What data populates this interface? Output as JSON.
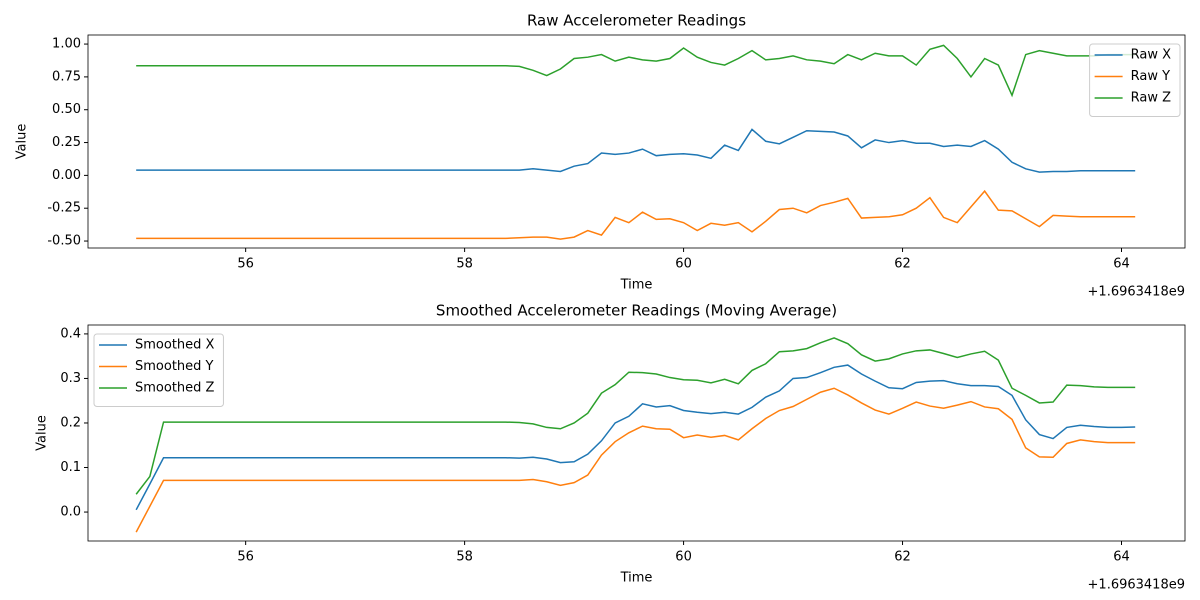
{
  "chart_data": [
    {
      "type": "line",
      "title": "Raw Accelerometer Readings",
      "xlabel": "Time",
      "ylabel": "Value",
      "x_offset_label": "+1.6963418e9",
      "x": [
        55,
        55.125,
        55.25,
        55.375,
        55.5,
        55.625,
        55.75,
        55.875,
        56,
        56.125,
        56.25,
        56.375,
        56.5,
        56.625,
        56.75,
        56.875,
        57,
        57.125,
        57.25,
        57.375,
        57.5,
        57.625,
        57.75,
        57.875,
        58,
        58.125,
        58.25,
        58.375,
        58.5,
        58.625,
        58.75,
        58.875,
        59,
        59.125,
        59.25,
        59.375,
        59.5,
        59.625,
        59.75,
        59.875,
        60,
        60.125,
        60.25,
        60.375,
        60.5,
        60.625,
        60.75,
        60.875,
        61,
        61.125,
        61.25,
        61.375,
        61.5,
        61.625,
        61.75,
        61.875,
        62,
        62.125,
        62.25,
        62.375,
        62.5,
        62.625,
        62.75,
        62.875,
        63,
        63.125,
        63.25,
        63.375,
        63.5,
        63.625,
        63.75,
        63.875,
        64,
        64.125
      ],
      "series": [
        {
          "name": "Raw X",
          "color": "#1f77b4",
          "values": [
            0.04,
            0.04,
            0.04,
            0.04,
            0.04,
            0.04,
            0.04,
            0.04,
            0.04,
            0.04,
            0.04,
            0.04,
            0.04,
            0.04,
            0.04,
            0.04,
            0.04,
            0.04,
            0.04,
            0.04,
            0.04,
            0.04,
            0.04,
            0.04,
            0.04,
            0.04,
            0.04,
            0.04,
            0.04,
            0.05,
            0.04,
            0.03,
            0.07,
            0.09,
            0.17,
            0.16,
            0.17,
            0.2,
            0.15,
            0.16,
            0.165,
            0.155,
            0.13,
            0.23,
            0.19,
            0.35,
            0.26,
            0.24,
            0.29,
            0.34,
            0.335,
            0.33,
            0.3,
            0.21,
            0.27,
            0.25,
            0.265,
            0.245,
            0.245,
            0.22,
            0.23,
            0.22,
            0.265,
            0.2,
            0.1,
            0.05,
            0.025,
            0.03,
            0.03,
            0.035,
            0.035,
            0.035,
            0.035,
            0.035
          ]
        },
        {
          "name": "Raw Y",
          "color": "#ff7f0e",
          "values": [
            -0.48,
            -0.48,
            -0.48,
            -0.48,
            -0.48,
            -0.48,
            -0.48,
            -0.48,
            -0.48,
            -0.48,
            -0.48,
            -0.48,
            -0.48,
            -0.48,
            -0.48,
            -0.48,
            -0.48,
            -0.48,
            -0.48,
            -0.48,
            -0.48,
            -0.48,
            -0.48,
            -0.48,
            -0.48,
            -0.48,
            -0.48,
            -0.48,
            -0.475,
            -0.47,
            -0.47,
            -0.485,
            -0.47,
            -0.42,
            -0.455,
            -0.32,
            -0.36,
            -0.28,
            -0.335,
            -0.33,
            -0.36,
            -0.42,
            -0.365,
            -0.38,
            -0.36,
            -0.43,
            -0.35,
            -0.26,
            -0.25,
            -0.285,
            -0.23,
            -0.205,
            -0.175,
            -0.325,
            -0.32,
            -0.315,
            -0.3,
            -0.25,
            -0.17,
            -0.32,
            -0.36,
            -0.24,
            -0.12,
            -0.265,
            -0.27,
            -0.33,
            -0.39,
            -0.305,
            -0.31,
            -0.315,
            -0.315,
            -0.315,
            -0.315,
            -0.315
          ]
        },
        {
          "name": "Raw Z",
          "color": "#2ca02c",
          "values": [
            0.835,
            0.835,
            0.835,
            0.835,
            0.835,
            0.835,
            0.835,
            0.835,
            0.835,
            0.835,
            0.835,
            0.835,
            0.835,
            0.835,
            0.835,
            0.835,
            0.835,
            0.835,
            0.835,
            0.835,
            0.835,
            0.835,
            0.835,
            0.835,
            0.835,
            0.835,
            0.835,
            0.835,
            0.83,
            0.8,
            0.76,
            0.81,
            0.89,
            0.9,
            0.92,
            0.87,
            0.9,
            0.88,
            0.87,
            0.89,
            0.97,
            0.9,
            0.86,
            0.84,
            0.89,
            0.95,
            0.88,
            0.89,
            0.91,
            0.88,
            0.87,
            0.85,
            0.92,
            0.88,
            0.93,
            0.91,
            0.91,
            0.84,
            0.96,
            0.99,
            0.89,
            0.75,
            0.89,
            0.84,
            0.61,
            0.92,
            0.95,
            0.93,
            0.91,
            0.91,
            0.91,
            0.92,
            0.92,
            0.92
          ]
        }
      ],
      "xlim": [
        54.56,
        64.58
      ],
      "xticks": [
        56,
        58,
        60,
        62,
        64
      ],
      "ylim": [
        -0.553,
        1.069
      ],
      "yticks": [
        {
          "value": -0.5,
          "label": "-0.50"
        },
        {
          "value": -0.25,
          "label": "-0.25"
        },
        {
          "value": 0,
          "label": "0.00"
        },
        {
          "value": 0.25,
          "label": "0.25"
        },
        {
          "value": 0.5,
          "label": "0.50"
        },
        {
          "value": 0.75,
          "label": "0.75"
        },
        {
          "value": 1,
          "label": "1.00"
        }
      ],
      "grid": false,
      "legend": "upper right"
    },
    {
      "type": "line",
      "title": "Smoothed Accelerometer Readings (Moving Average)",
      "xlabel": "Time",
      "ylabel": "Value",
      "x_offset_label": "+1.6963418e9",
      "x": [
        55,
        55.125,
        55.25,
        55.375,
        55.5,
        55.625,
        55.75,
        55.875,
        56,
        56.125,
        56.25,
        56.375,
        56.5,
        56.625,
        56.75,
        56.875,
        57,
        57.125,
        57.25,
        57.375,
        57.5,
        57.625,
        57.75,
        57.875,
        58,
        58.125,
        58.25,
        58.375,
        58.5,
        58.625,
        58.75,
        58.875,
        59,
        59.125,
        59.25,
        59.375,
        59.5,
        59.625,
        59.75,
        59.875,
        60,
        60.125,
        60.25,
        60.375,
        60.5,
        60.625,
        60.75,
        60.875,
        61,
        61.125,
        61.25,
        61.375,
        61.5,
        61.625,
        61.75,
        61.875,
        62,
        62.125,
        62.25,
        62.375,
        62.5,
        62.625,
        62.75,
        62.875,
        63,
        63.125,
        63.25,
        63.375,
        63.5,
        63.625,
        63.75,
        63.875,
        64,
        64.125
      ],
      "series": [
        {
          "name": "Smoothed X",
          "color": "#1f77b4",
          "values": [
            0.005,
            0.063,
            0.122,
            0.122,
            0.122,
            0.122,
            0.122,
            0.122,
            0.122,
            0.122,
            0.122,
            0.122,
            0.122,
            0.122,
            0.122,
            0.122,
            0.122,
            0.122,
            0.122,
            0.122,
            0.122,
            0.122,
            0.122,
            0.122,
            0.122,
            0.122,
            0.122,
            0.122,
            0.121,
            0.123,
            0.119,
            0.111,
            0.113,
            0.13,
            0.16,
            0.2,
            0.215,
            0.243,
            0.236,
            0.239,
            0.228,
            0.224,
            0.221,
            0.224,
            0.22,
            0.235,
            0.258,
            0.272,
            0.3,
            0.302,
            0.313,
            0.325,
            0.33,
            0.31,
            0.294,
            0.279,
            0.277,
            0.291,
            0.294,
            0.295,
            0.288,
            0.284,
            0.284,
            0.282,
            0.262,
            0.207,
            0.174,
            0.165,
            0.19,
            0.195,
            0.192,
            0.19,
            0.19,
            0.191
          ]
        },
        {
          "name": "Smoothed Y",
          "color": "#ff7f0e",
          "values": [
            -0.045,
            0.013,
            0.071,
            0.071,
            0.071,
            0.071,
            0.071,
            0.071,
            0.071,
            0.071,
            0.071,
            0.071,
            0.071,
            0.071,
            0.071,
            0.071,
            0.071,
            0.071,
            0.071,
            0.071,
            0.071,
            0.071,
            0.071,
            0.071,
            0.071,
            0.071,
            0.071,
            0.071,
            0.071,
            0.073,
            0.068,
            0.06,
            0.066,
            0.083,
            0.128,
            0.158,
            0.178,
            0.193,
            0.187,
            0.186,
            0.167,
            0.173,
            0.168,
            0.172,
            0.162,
            0.187,
            0.21,
            0.228,
            0.237,
            0.253,
            0.269,
            0.278,
            0.263,
            0.245,
            0.229,
            0.22,
            0.233,
            0.247,
            0.238,
            0.233,
            0.24,
            0.248,
            0.236,
            0.232,
            0.208,
            0.144,
            0.124,
            0.123,
            0.154,
            0.162,
            0.158,
            0.156,
            0.156,
            0.156
          ]
        },
        {
          "name": "Smoothed Z",
          "color": "#2ca02c",
          "values": [
            0.04,
            0.08,
            0.202,
            0.202,
            0.202,
            0.202,
            0.202,
            0.202,
            0.202,
            0.202,
            0.202,
            0.202,
            0.202,
            0.202,
            0.202,
            0.202,
            0.202,
            0.202,
            0.202,
            0.202,
            0.202,
            0.202,
            0.202,
            0.202,
            0.202,
            0.202,
            0.202,
            0.202,
            0.201,
            0.198,
            0.19,
            0.187,
            0.2,
            0.222,
            0.267,
            0.286,
            0.314,
            0.313,
            0.31,
            0.302,
            0.297,
            0.296,
            0.29,
            0.298,
            0.288,
            0.318,
            0.333,
            0.36,
            0.362,
            0.367,
            0.38,
            0.391,
            0.378,
            0.353,
            0.339,
            0.344,
            0.355,
            0.362,
            0.364,
            0.356,
            0.347,
            0.355,
            0.361,
            0.341,
            0.278,
            0.262,
            0.245,
            0.247,
            0.285,
            0.284,
            0.281,
            0.28,
            0.28,
            0.28
          ]
        }
      ],
      "xlim": [
        54.56,
        64.58
      ],
      "xticks": [
        56,
        58,
        60,
        62,
        64
      ],
      "ylim": [
        -0.065,
        0.42
      ],
      "yticks": [
        {
          "value": 0,
          "label": "0.0"
        },
        0.1,
        0.2,
        0.3,
        0.4
      ],
      "grid": false,
      "legend": "upper left"
    }
  ]
}
